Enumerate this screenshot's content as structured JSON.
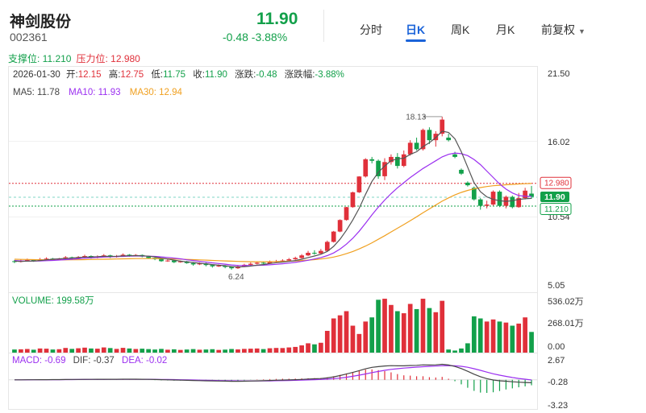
{
  "stock": {
    "name": "神剑股份",
    "code": "002361",
    "price": "11.90",
    "change_text": "-0.48 -3.88%"
  },
  "tabs": [
    "分时",
    "日K",
    "周K",
    "月K",
    "前复权"
  ],
  "active_tab": "日K",
  "levels": {
    "support_label": "支撑位: 11.210",
    "resistance_label": "压力位: 12.980",
    "support": 11.21,
    "resistance": 12.98,
    "support_tag": "11.210",
    "resistance_tag": "12.980",
    "last_tag": "11.90"
  },
  "info_bar": {
    "date": "2026-01-30",
    "items": [
      {
        "label": "开:",
        "value": "12.15",
        "color": "#e0303a"
      },
      {
        "label": "高:",
        "value": "12.75",
        "color": "#e0303a"
      },
      {
        "label": "低:",
        "value": "11.75",
        "color": "#12a04a"
      },
      {
        "label": "收:",
        "value": "11.90",
        "color": "#12a04a"
      },
      {
        "label": "涨跌:",
        "value": "-0.48",
        "color": "#12a04a"
      },
      {
        "label": "涨跌幅:",
        "value": "-3.88%",
        "color": "#12a04a"
      }
    ]
  },
  "ma_legend": [
    {
      "label": "MA5: 11.78",
      "color": "#444444"
    },
    {
      "label": "MA10: 11.93",
      "color": "#9b2ff0"
    },
    {
      "label": "MA30: 12.94",
      "color": "#f0a020"
    }
  ],
  "volume_legend": "VOLUME: 199.58万",
  "macd_legend": [
    {
      "label": "MACD: -0.69",
      "color": "#9b2ff0"
    },
    {
      "label": "DIF: -0.37",
      "color": "#444444"
    },
    {
      "label": "DEA: -0.02",
      "color": "#9b2ff0"
    }
  ],
  "colors": {
    "up": "#e0303a",
    "down": "#12a04a",
    "ma5": "#555555",
    "ma10": "#9b2ff0",
    "ma30": "#f0a020",
    "accent": "#1a63d9"
  },
  "chart_data": {
    "type": "candlestick",
    "y_axis_ticks": [
      "21.50",
      "16.02",
      "10.54",
      "5.05"
    ],
    "y_range": [
      5.05,
      21.5
    ],
    "max_annotation": "18.13",
    "min_annotation": "6.24",
    "max_price": 18.13,
    "min_price": 6.24,
    "volume_axis_ticks": [
      "536.02万",
      "268.01万",
      "0.00"
    ],
    "volume_max": 536.02,
    "macd_axis_ticks": [
      "2.67",
      "-0.28",
      "-3.23"
    ],
    "macd_range": [
      -3.23,
      2.67
    ],
    "volume_unit": "万",
    "candles": [
      {
        "o": 6.9,
        "c": 6.85,
        "h": 7.0,
        "l": 6.75,
        "v": 30
      },
      {
        "o": 6.85,
        "c": 6.95,
        "h": 7.05,
        "l": 6.8,
        "v": 32
      },
      {
        "o": 6.95,
        "c": 7.0,
        "h": 7.1,
        "l": 6.9,
        "v": 35
      },
      {
        "o": 7.0,
        "c": 6.92,
        "h": 7.05,
        "l": 6.85,
        "v": 28
      },
      {
        "o": 6.92,
        "c": 7.05,
        "h": 7.15,
        "l": 6.9,
        "v": 40
      },
      {
        "o": 7.05,
        "c": 7.1,
        "h": 7.2,
        "l": 7.0,
        "v": 38
      },
      {
        "o": 7.1,
        "c": 7.02,
        "h": 7.15,
        "l": 6.95,
        "v": 30
      },
      {
        "o": 7.02,
        "c": 7.08,
        "h": 7.15,
        "l": 6.98,
        "v": 33
      },
      {
        "o": 7.08,
        "c": 7.2,
        "h": 7.3,
        "l": 7.05,
        "v": 45
      },
      {
        "o": 7.2,
        "c": 7.12,
        "h": 7.25,
        "l": 7.05,
        "v": 36
      },
      {
        "o": 7.12,
        "c": 7.22,
        "h": 7.3,
        "l": 7.1,
        "v": 42
      },
      {
        "o": 7.22,
        "c": 7.3,
        "h": 7.4,
        "l": 7.15,
        "v": 48
      },
      {
        "o": 7.3,
        "c": 7.18,
        "h": 7.35,
        "l": 7.1,
        "v": 40
      },
      {
        "o": 7.18,
        "c": 7.26,
        "h": 7.35,
        "l": 7.12,
        "v": 38
      },
      {
        "o": 7.26,
        "c": 7.35,
        "h": 7.45,
        "l": 7.2,
        "v": 50
      },
      {
        "o": 7.35,
        "c": 7.22,
        "h": 7.4,
        "l": 7.15,
        "v": 44
      },
      {
        "o": 7.22,
        "c": 7.3,
        "h": 7.38,
        "l": 7.18,
        "v": 36
      },
      {
        "o": 7.3,
        "c": 7.4,
        "h": 7.5,
        "l": 7.25,
        "v": 46
      },
      {
        "o": 7.4,
        "c": 7.32,
        "h": 7.45,
        "l": 7.25,
        "v": 40
      },
      {
        "o": 7.32,
        "c": 7.38,
        "h": 7.45,
        "l": 7.28,
        "v": 35
      },
      {
        "o": 7.38,
        "c": 7.26,
        "h": 7.42,
        "l": 7.2,
        "v": 38
      },
      {
        "o": 7.26,
        "c": 7.15,
        "h": 7.3,
        "l": 7.1,
        "v": 34
      },
      {
        "o": 7.15,
        "c": 7.05,
        "h": 7.2,
        "l": 6.98,
        "v": 30
      },
      {
        "o": 7.05,
        "c": 6.9,
        "h": 7.1,
        "l": 6.85,
        "v": 36
      },
      {
        "o": 6.9,
        "c": 6.95,
        "h": 7.05,
        "l": 6.85,
        "v": 28
      },
      {
        "o": 6.95,
        "c": 6.82,
        "h": 7.0,
        "l": 6.75,
        "v": 32
      },
      {
        "o": 6.82,
        "c": 6.88,
        "h": 6.95,
        "l": 6.78,
        "v": 26
      },
      {
        "o": 6.88,
        "c": 6.75,
        "h": 6.92,
        "l": 6.7,
        "v": 30
      },
      {
        "o": 6.75,
        "c": 6.65,
        "h": 6.8,
        "l": 6.55,
        "v": 34
      },
      {
        "o": 6.65,
        "c": 6.72,
        "h": 6.8,
        "l": 6.6,
        "v": 28
      },
      {
        "o": 6.72,
        "c": 6.6,
        "h": 6.78,
        "l": 6.5,
        "v": 30
      },
      {
        "o": 6.6,
        "c": 6.5,
        "h": 6.65,
        "l": 6.4,
        "v": 33
      },
      {
        "o": 6.5,
        "c": 6.55,
        "h": 6.65,
        "l": 6.45,
        "v": 26
      },
      {
        "o": 6.55,
        "c": 6.45,
        "h": 6.6,
        "l": 6.35,
        "v": 29
      },
      {
        "o": 6.45,
        "c": 6.35,
        "h": 6.5,
        "l": 6.24,
        "v": 35
      },
      {
        "o": 6.35,
        "c": 6.5,
        "h": 6.6,
        "l": 6.3,
        "v": 31
      },
      {
        "o": 6.5,
        "c": 6.62,
        "h": 6.7,
        "l": 6.45,
        "v": 36
      },
      {
        "o": 6.62,
        "c": 6.7,
        "h": 6.8,
        "l": 6.58,
        "v": 38
      },
      {
        "o": 6.7,
        "c": 6.78,
        "h": 6.85,
        "l": 6.65,
        "v": 40
      },
      {
        "o": 6.78,
        "c": 6.72,
        "h": 6.85,
        "l": 6.68,
        "v": 34
      },
      {
        "o": 6.72,
        "c": 6.85,
        "h": 6.95,
        "l": 6.7,
        "v": 42
      },
      {
        "o": 6.85,
        "c": 6.9,
        "h": 7.0,
        "l": 6.8,
        "v": 45
      },
      {
        "o": 6.9,
        "c": 6.95,
        "h": 7.05,
        "l": 6.85,
        "v": 44
      },
      {
        "o": 6.95,
        "c": 7.05,
        "h": 7.15,
        "l": 6.9,
        "v": 50
      },
      {
        "o": 7.05,
        "c": 7.15,
        "h": 7.25,
        "l": 7.0,
        "v": 55
      },
      {
        "o": 7.15,
        "c": 7.35,
        "h": 7.45,
        "l": 7.1,
        "v": 70
      },
      {
        "o": 7.35,
        "c": 7.55,
        "h": 7.7,
        "l": 7.3,
        "v": 90
      },
      {
        "o": 7.55,
        "c": 7.5,
        "h": 7.75,
        "l": 7.4,
        "v": 80
      },
      {
        "o": 7.5,
        "c": 7.7,
        "h": 7.85,
        "l": 7.45,
        "v": 95
      },
      {
        "o": 7.7,
        "c": 8.4,
        "h": 8.5,
        "l": 7.65,
        "v": 210
      },
      {
        "o": 8.4,
        "c": 9.2,
        "h": 9.25,
        "l": 8.35,
        "v": 330
      },
      {
        "o": 9.2,
        "c": 10.1,
        "h": 10.15,
        "l": 9.15,
        "v": 360
      },
      {
        "o": 10.1,
        "c": 11.1,
        "h": 11.12,
        "l": 10.05,
        "v": 400
      },
      {
        "o": 11.1,
        "c": 12.25,
        "h": 12.3,
        "l": 11.05,
        "v": 260
      },
      {
        "o": 12.25,
        "c": 13.48,
        "h": 13.5,
        "l": 12.2,
        "v": 180
      },
      {
        "o": 13.48,
        "c": 14.82,
        "h": 14.9,
        "l": 13.4,
        "v": 300
      },
      {
        "o": 14.82,
        "c": 14.7,
        "h": 15.0,
        "l": 14.5,
        "v": 340
      },
      {
        "o": 14.7,
        "c": 13.5,
        "h": 14.8,
        "l": 13.3,
        "v": 510
      },
      {
        "o": 13.5,
        "c": 14.6,
        "h": 14.9,
        "l": 13.2,
        "v": 520
      },
      {
        "o": 14.6,
        "c": 15.0,
        "h": 15.2,
        "l": 14.4,
        "v": 460
      },
      {
        "o": 15.0,
        "c": 14.3,
        "h": 15.3,
        "l": 14.1,
        "v": 400
      },
      {
        "o": 14.3,
        "c": 15.2,
        "h": 15.5,
        "l": 14.2,
        "v": 380
      },
      {
        "o": 15.2,
        "c": 16.1,
        "h": 16.3,
        "l": 15.1,
        "v": 470
      },
      {
        "o": 16.1,
        "c": 15.6,
        "h": 16.5,
        "l": 15.5,
        "v": 420
      },
      {
        "o": 15.6,
        "c": 17.1,
        "h": 17.2,
        "l": 15.5,
        "v": 520
      },
      {
        "o": 17.1,
        "c": 16.3,
        "h": 17.3,
        "l": 16.0,
        "v": 430
      },
      {
        "o": 16.3,
        "c": 16.8,
        "h": 17.0,
        "l": 15.8,
        "v": 390
      },
      {
        "o": 16.8,
        "c": 17.9,
        "h": 18.13,
        "l": 16.6,
        "v": 500
      },
      {
        "o": 16.5,
        "c": 16.3,
        "h": 16.8,
        "l": 16.2,
        "v": 30
      },
      {
        "o": 15.2,
        "c": 15.0,
        "h": 15.4,
        "l": 14.9,
        "v": 20
      },
      {
        "o": 14.0,
        "c": 13.7,
        "h": 14.1,
        "l": 13.6,
        "v": 40
      },
      {
        "o": 13.0,
        "c": 12.8,
        "h": 13.1,
        "l": 12.7,
        "v": 90
      },
      {
        "o": 12.6,
        "c": 11.7,
        "h": 12.7,
        "l": 11.6,
        "v": 350
      },
      {
        "o": 11.7,
        "c": 11.2,
        "h": 11.8,
        "l": 10.9,
        "v": 330
      },
      {
        "o": 11.2,
        "c": 11.3,
        "h": 11.6,
        "l": 11.0,
        "v": 300
      },
      {
        "o": 11.3,
        "c": 12.3,
        "h": 12.4,
        "l": 11.2,
        "v": 320
      },
      {
        "o": 12.3,
        "c": 11.2,
        "h": 12.4,
        "l": 11.1,
        "v": 300
      },
      {
        "o": 11.2,
        "c": 11.9,
        "h": 12.0,
        "l": 11.0,
        "v": 290
      },
      {
        "o": 11.9,
        "c": 11.1,
        "h": 12.0,
        "l": 11.0,
        "v": 260
      },
      {
        "o": 11.1,
        "c": 11.8,
        "h": 12.2,
        "l": 11.05,
        "v": 280
      },
      {
        "o": 11.8,
        "c": 12.38,
        "h": 12.6,
        "l": 11.7,
        "v": 340
      },
      {
        "o": 12.15,
        "c": 11.9,
        "h": 12.75,
        "l": 11.75,
        "v": 199.58
      }
    ],
    "ma5": [
      6.9,
      6.88,
      6.9,
      6.91,
      6.95,
      7.0,
      7.05,
      7.08,
      7.11,
      7.14,
      7.18,
      7.22,
      7.23,
      7.25,
      7.28,
      7.27,
      7.28,
      7.31,
      7.32,
      7.33,
      7.32,
      7.29,
      7.23,
      7.14,
      7.07,
      6.98,
      6.9,
      6.85,
      6.8,
      6.74,
      6.7,
      6.64,
      6.59,
      6.55,
      6.48,
      6.45,
      6.47,
      6.52,
      6.59,
      6.64,
      6.72,
      6.78,
      6.83,
      6.88,
      6.95,
      7.05,
      7.18,
      7.3,
      7.44,
      7.66,
      8.05,
      8.6,
      9.3,
      10.1,
      11.0,
      12.1,
      13.1,
      13.8,
      14.3,
      14.7,
      14.85,
      14.9,
      15.2,
      15.4,
      15.8,
      16.1,
      16.5,
      17.0,
      16.9,
      16.4,
      15.4,
      14.2,
      13.0,
      12.3,
      11.9,
      11.7,
      11.6,
      11.55,
      11.6,
      11.7,
      11.75,
      11.78
    ],
    "ma10": [
      6.95,
      6.92,
      6.91,
      6.91,
      6.92,
      6.94,
      6.96,
      6.99,
      7.02,
      7.05,
      7.09,
      7.13,
      7.16,
      7.19,
      7.22,
      7.24,
      7.26,
      7.27,
      7.29,
      7.3,
      7.3,
      7.29,
      7.27,
      7.23,
      7.19,
      7.14,
      7.08,
      7.01,
      6.95,
      6.89,
      6.83,
      6.77,
      6.72,
      6.67,
      6.61,
      6.57,
      6.56,
      6.56,
      6.57,
      6.59,
      6.62,
      6.66,
      6.7,
      6.75,
      6.81,
      6.88,
      6.97,
      7.07,
      7.18,
      7.33,
      7.54,
      7.84,
      8.22,
      8.68,
      9.22,
      9.85,
      10.5,
      11.1,
      11.65,
      12.15,
      12.6,
      13.0,
      13.4,
      13.75,
      14.1,
      14.4,
      14.7,
      15.0,
      15.2,
      15.3,
      15.25,
      15.1,
      14.8,
      14.4,
      13.9,
      13.4,
      12.9,
      12.5,
      12.2,
      12.0,
      11.95,
      11.93
    ],
    "ma30": [
      7.05,
      7.04,
      7.03,
      7.02,
      7.01,
      7.01,
      7.0,
      7.0,
      7.0,
      7.01,
      7.01,
      7.02,
      7.03,
      7.04,
      7.05,
      7.06,
      7.07,
      7.08,
      7.09,
      7.1,
      7.1,
      7.1,
      7.1,
      7.09,
      7.08,
      7.07,
      7.06,
      7.04,
      7.02,
      7.0,
      6.98,
      6.96,
      6.94,
      6.92,
      6.9,
      6.88,
      6.87,
      6.86,
      6.86,
      6.86,
      6.86,
      6.87,
      6.88,
      6.9,
      6.92,
      6.95,
      6.98,
      7.02,
      7.07,
      7.13,
      7.22,
      7.34,
      7.48,
      7.65,
      7.85,
      8.08,
      8.33,
      8.6,
      8.88,
      9.17,
      9.46,
      9.75,
      10.05,
      10.35,
      10.66,
      10.96,
      11.26,
      11.56,
      11.82,
      12.05,
      12.24,
      12.4,
      12.52,
      12.62,
      12.7,
      12.76,
      12.8,
      12.84,
      12.87,
      12.9,
      12.92,
      12.94
    ],
    "dif": [
      0.0,
      0.0,
      0.01,
      0.01,
      0.02,
      0.02,
      0.03,
      0.03,
      0.04,
      0.05,
      0.05,
      0.06,
      0.06,
      0.07,
      0.07,
      0.07,
      0.07,
      0.08,
      0.08,
      0.08,
      0.07,
      0.06,
      0.04,
      0.02,
      0.0,
      -0.02,
      -0.04,
      -0.06,
      -0.08,
      -0.1,
      -0.12,
      -0.14,
      -0.16,
      -0.17,
      -0.19,
      -0.19,
      -0.18,
      -0.16,
      -0.13,
      -0.11,
      -0.08,
      -0.05,
      -0.03,
      -0.01,
      0.02,
      0.05,
      0.09,
      0.13,
      0.17,
      0.25,
      0.38,
      0.55,
      0.74,
      0.95,
      1.18,
      1.42,
      1.6,
      1.7,
      1.78,
      1.82,
      1.8,
      1.8,
      1.84,
      1.86,
      1.92,
      1.9,
      1.92,
      2.0,
      1.9,
      1.72,
      1.45,
      1.1,
      0.72,
      0.4,
      0.15,
      -0.02,
      -0.12,
      -0.18,
      -0.25,
      -0.3,
      -0.34,
      -0.37
    ],
    "dea": [
      0.0,
      0.0,
      0.0,
      0.01,
      0.01,
      0.01,
      0.02,
      0.02,
      0.03,
      0.03,
      0.04,
      0.04,
      0.05,
      0.05,
      0.05,
      0.06,
      0.06,
      0.06,
      0.07,
      0.07,
      0.07,
      0.07,
      0.06,
      0.05,
      0.04,
      0.03,
      0.01,
      0.0,
      -0.02,
      -0.04,
      -0.05,
      -0.07,
      -0.09,
      -0.11,
      -0.12,
      -0.14,
      -0.15,
      -0.15,
      -0.15,
      -0.14,
      -0.13,
      -0.11,
      -0.1,
      -0.08,
      -0.06,
      -0.04,
      -0.01,
      0.02,
      0.05,
      0.09,
      0.15,
      0.23,
      0.33,
      0.45,
      0.6,
      0.76,
      0.93,
      1.08,
      1.22,
      1.34,
      1.43,
      1.51,
      1.57,
      1.63,
      1.69,
      1.73,
      1.77,
      1.81,
      1.83,
      1.81,
      1.74,
      1.61,
      1.43,
      1.22,
      0.99,
      0.78,
      0.6,
      0.44,
      0.3,
      0.18,
      0.08,
      -0.02
    ]
  }
}
